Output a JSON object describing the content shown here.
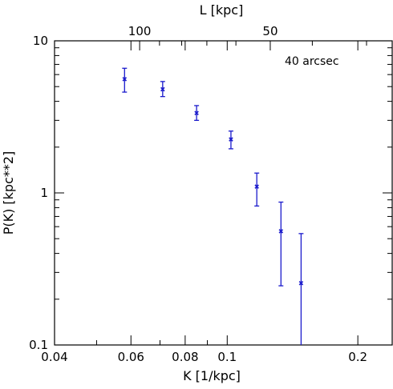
{
  "chart_data": {
    "type": "scatter",
    "title": "",
    "xlabel": "K [1/kpc]",
    "ylabel": "P(K) [kpc**2]",
    "top_xlabel": "L [kpc]",
    "annotation": "40 arcsec",
    "x_scale": "log",
    "y_scale": "log",
    "xlim": [
      0.04,
      0.24
    ],
    "ylim": [
      0.1,
      10
    ],
    "grid": false,
    "x_ticks": [
      {
        "value": 0.04,
        "label": "0.04"
      },
      {
        "value": 0.06,
        "label": "0.06"
      },
      {
        "value": 0.08,
        "label": "0.08"
      },
      {
        "value": 0.1,
        "label": "0.1"
      },
      {
        "value": 0.2,
        "label": "0.2"
      }
    ],
    "y_ticks": [
      {
        "value": 0.1,
        "label": "0.1"
      },
      {
        "value": 1,
        "label": "1"
      },
      {
        "value": 10,
        "label": "10"
      }
    ],
    "top_ticks": [
      {
        "value": 100,
        "label": "100"
      },
      {
        "value": 50,
        "label": "50"
      }
    ],
    "series_color": "#1a1acc",
    "series": [
      {
        "points": [
          {
            "x": 0.058,
            "y": 5.6,
            "ylow": 4.6,
            "yhigh": 6.6
          },
          {
            "x": 0.071,
            "y": 4.8,
            "ylow": 4.3,
            "yhigh": 5.4
          },
          {
            "x": 0.085,
            "y": 3.35,
            "ylow": 3.0,
            "yhigh": 3.75
          },
          {
            "x": 0.102,
            "y": 2.25,
            "ylow": 1.95,
            "yhigh": 2.55
          },
          {
            "x": 0.117,
            "y": 1.1,
            "ylow": 0.82,
            "yhigh": 1.35
          },
          {
            "x": 0.133,
            "y": 0.56,
            "ylow": 0.245,
            "yhigh": 0.87
          },
          {
            "x": 0.148,
            "y": 0.255,
            "ylow": 0.1,
            "yhigh": 0.54
          }
        ]
      }
    ]
  }
}
